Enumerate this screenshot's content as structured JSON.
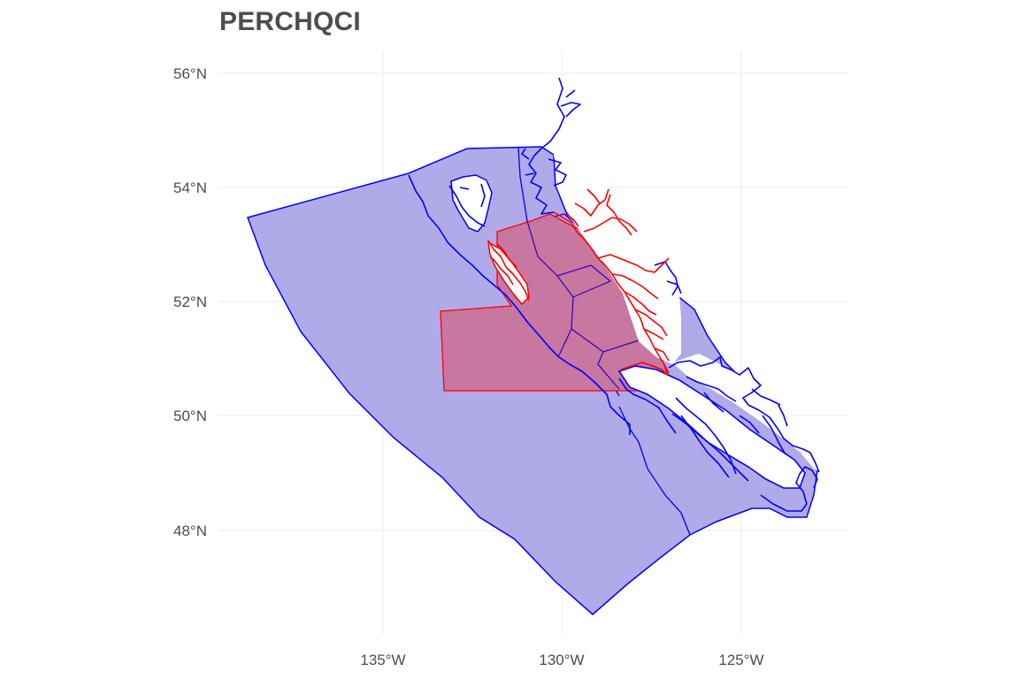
{
  "title": "PERCHQCI",
  "map": {
    "latitude_labels": [
      "56°N",
      "54°N",
      "52°N",
      "50°N",
      "48°N"
    ],
    "longitude_labels": [
      "135°W",
      "130°W",
      "125°W"
    ],
    "colors": {
      "management_area_fill": "#b1aae8",
      "management_area_outline": "#0000ff",
      "highlighted_area_fill": "#c9749d",
      "highlighted_area_outline": "#ff0000",
      "coastline_unselected": "#0000ff",
      "coastline_selected": "#ff0000",
      "land": "#ffffff",
      "gridline": "#ebebeb",
      "label_text": "#4d4d4d"
    },
    "layers": [
      {
        "name": "management-areas",
        "style": "blue-translucent"
      },
      {
        "name": "selected-areas",
        "style": "red-translucent"
      },
      {
        "name": "coastline",
        "style": "blue-line"
      },
      {
        "name": "selected-coastline",
        "style": "red-line"
      }
    ]
  }
}
